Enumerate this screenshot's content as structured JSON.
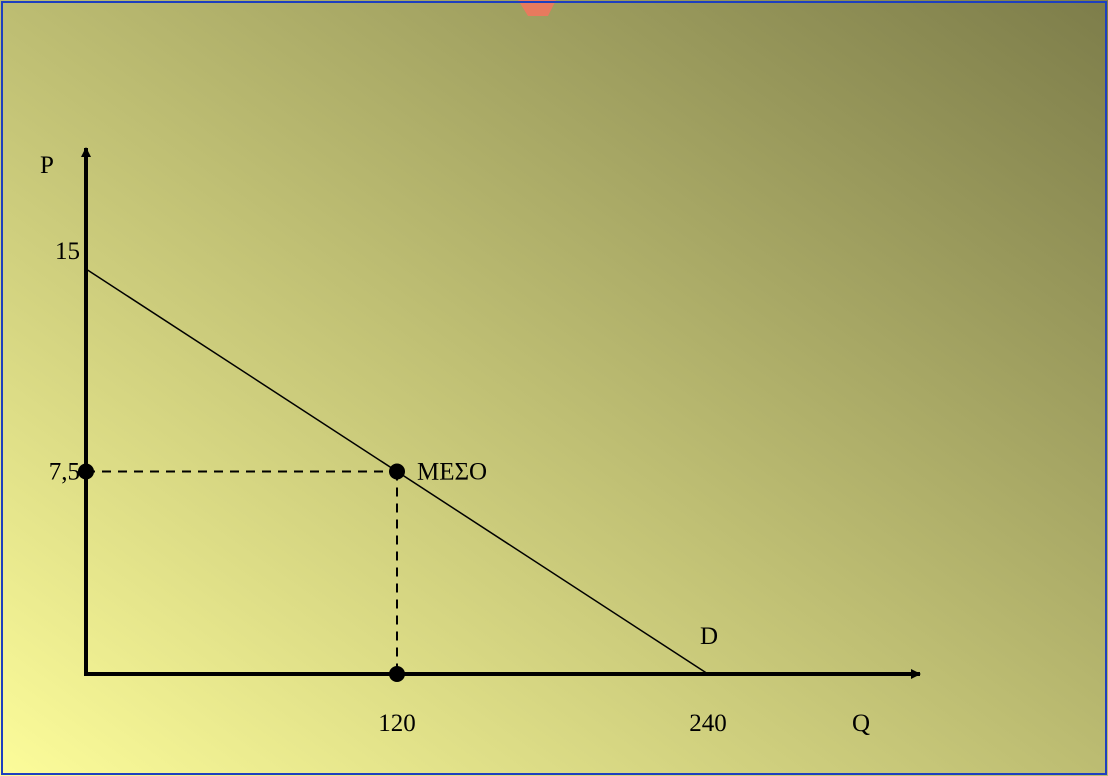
{
  "colors": {
    "frame": "#1e3fbf",
    "ink": "#000000",
    "background_light": "#fcfc9a",
    "background_dark": "#7d7d4a",
    "tab_accent": "#e87a5e"
  },
  "chart_data": {
    "type": "line",
    "xlabel": "Q",
    "ylabel": "P",
    "xlim": [
      0,
      268
    ],
    "ylim": [
      0,
      20
    ],
    "x_ticks": [
      {
        "value": 120,
        "label": "120"
      },
      {
        "value": 240,
        "label": "240"
      }
    ],
    "y_ticks": [
      {
        "value": 15,
        "label": "15"
      },
      {
        "value": 7.5,
        "label": "7,5"
      }
    ],
    "series": [
      {
        "name": "D",
        "points": [
          {
            "x": 0,
            "y": 15
          },
          {
            "x": 240,
            "y": 0
          }
        ]
      }
    ],
    "annotations": [
      {
        "label": "ΜΕΣΟ",
        "x": 120,
        "y": 7.5
      }
    ],
    "guides": {
      "x": 120,
      "y": 7.5
    },
    "markers": [
      {
        "x": 0,
        "y": 7.5
      },
      {
        "x": 120,
        "y": 7.5
      },
      {
        "x": 120,
        "y": 0
      }
    ],
    "grid": false
  }
}
